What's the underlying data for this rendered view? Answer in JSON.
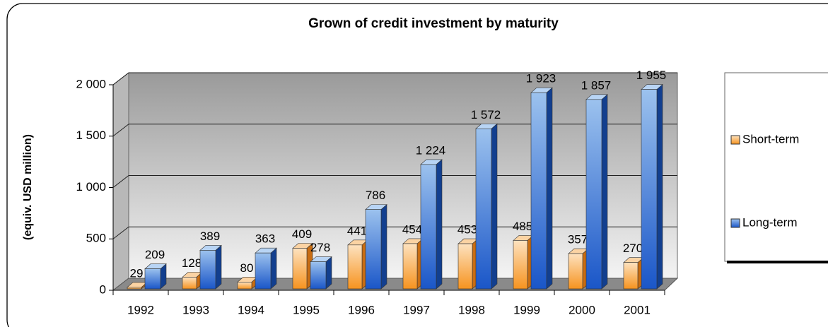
{
  "chart_data": {
    "type": "bar3d",
    "title": "Grown of credit investment by maturity",
    "y_label": "(equiv. USD million)",
    "categories": [
      "1992",
      "1993",
      "1994",
      "1995",
      "1996",
      "1997",
      "1998",
      "1999",
      "2000",
      "2001"
    ],
    "series": [
      {
        "name": "Short-term",
        "color": "#f6a24a",
        "values": [
          29,
          128,
          80,
          409,
          441,
          454,
          453,
          485,
          357,
          270
        ]
      },
      {
        "name": "Long-term",
        "color": "#2b6fd6",
        "values": [
          209,
          389,
          363,
          278,
          786,
          1224,
          1572,
          1923,
          1857,
          1955
        ],
        "value_labels": [
          "209",
          "389",
          "363",
          "278",
          "786",
          "1 224",
          "1 572",
          "1 923",
          "1 857",
          "1 955"
        ]
      }
    ],
    "ylim": [
      0,
      2000
    ],
    "yticks": [
      0,
      500,
      {
        "value": 1000,
        "label": "1 000"
      },
      {
        "value": 1500,
        "label": "1 500"
      },
      {
        "value": 2000,
        "label": "2 000"
      }
    ],
    "grid": true,
    "legend": "right"
  }
}
